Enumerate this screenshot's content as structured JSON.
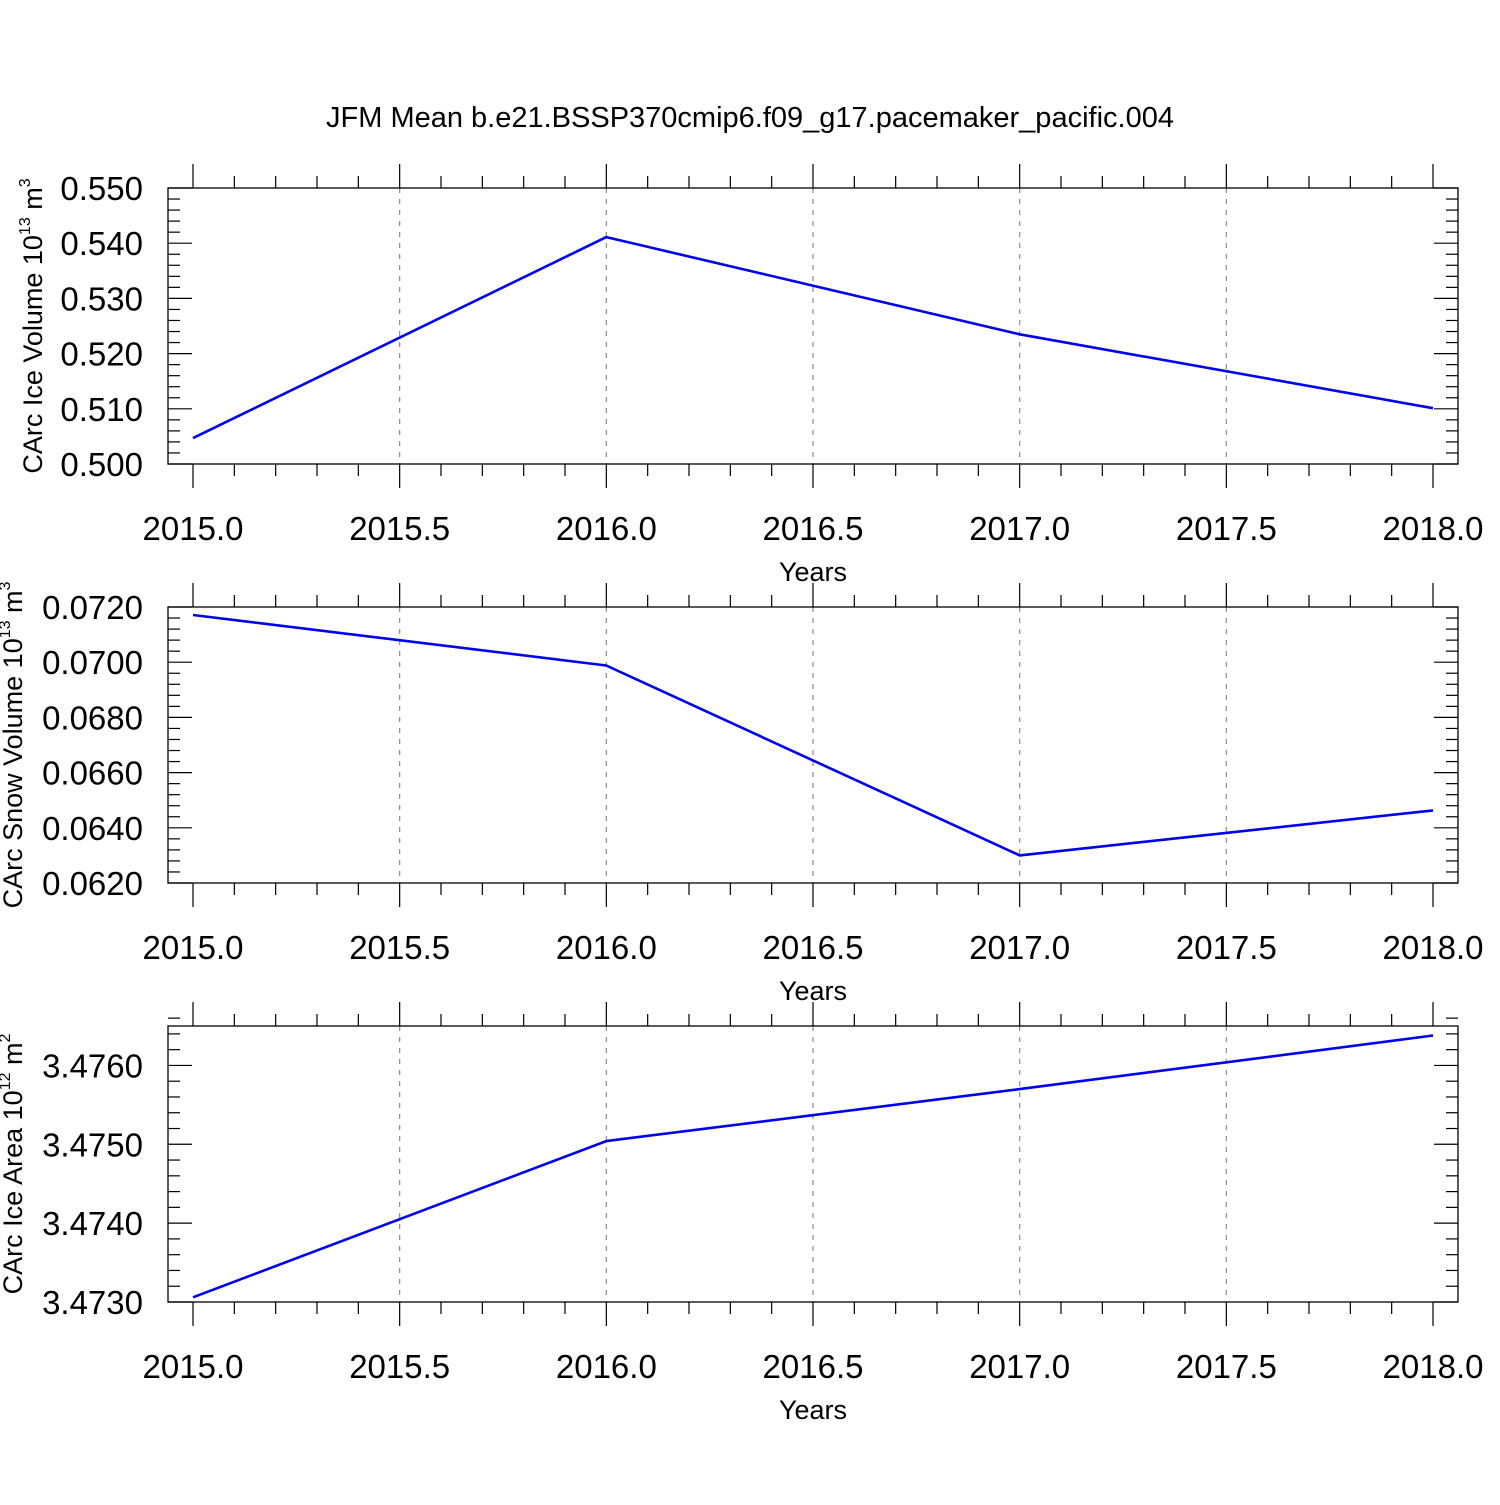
{
  "figure": {
    "title": "JFM Mean b.e21.BSSP370cmip6.f09_g17.pacemaker_pacific.004"
  },
  "colors": {
    "line": "#0000ee",
    "grid": "#8c8c8c",
    "axes": "#000000"
  },
  "chart_data": [
    {
      "type": "line",
      "title": "",
      "xlabel": "Years",
      "ylabel": "CArc Ice Volume 10",
      "ylabel_exp": "13",
      "ylabel_unit": " m",
      "ylabel_unit_exp": "3",
      "x": [
        2015,
        2016,
        2017,
        2018
      ],
      "series": [
        {
          "values": [
            0.5047,
            0.5411,
            0.5235,
            0.5101
          ]
        }
      ],
      "xlim": [
        2015,
        2018
      ],
      "ylim": [
        0.5,
        0.55
      ],
      "xticks": [
        "2015.0",
        "2015.5",
        "2016.0",
        "2016.5",
        "2017.0",
        "2017.5",
        "2018.0"
      ],
      "yticks": [
        "0.500",
        "0.510",
        "0.520",
        "0.530",
        "0.540",
        "0.550"
      ],
      "grid": "vertical dashed at major x ticks"
    },
    {
      "type": "line",
      "title": "",
      "xlabel": "Years",
      "ylabel": "CArc Snow Volume 10",
      "ylabel_exp": "13",
      "ylabel_unit": " m",
      "ylabel_unit_exp": "3",
      "x": [
        2015,
        2016,
        2017,
        2018
      ],
      "series": [
        {
          "values": [
            0.07171,
            0.06988,
            0.063,
            0.06463
          ]
        }
      ],
      "xlim": [
        2015,
        2018
      ],
      "ylim": [
        0.062,
        0.072
      ],
      "xticks": [
        "2015.0",
        "2015.5",
        "2016.0",
        "2016.5",
        "2017.0",
        "2017.5",
        "2018.0"
      ],
      "yticks": [
        "0.0620",
        "0.0640",
        "0.0660",
        "0.0680",
        "0.0700",
        "0.0720"
      ],
      "grid": "vertical dashed at major x ticks"
    },
    {
      "type": "line",
      "title": "",
      "xlabel": "Years",
      "ylabel": "CArc Ice Area 10",
      "ylabel_exp": "12",
      "ylabel_unit": " m",
      "ylabel_unit_exp": "2",
      "x": [
        2015,
        2016,
        2017,
        2018
      ],
      "series": [
        {
          "values": [
            3.47306,
            3.47504,
            3.4757,
            3.47638
          ]
        }
      ],
      "xlim": [
        2015,
        2018
      ],
      "ylim": [
        3.473,
        3.4765
      ],
      "xticks": [
        "2015.0",
        "2015.5",
        "2016.0",
        "2016.5",
        "2017.0",
        "2017.5",
        "2018.0"
      ],
      "yticks": [
        "3.4730",
        "3.4740",
        "3.4750",
        "3.4760"
      ],
      "grid": "vertical dashed at major x ticks"
    }
  ]
}
